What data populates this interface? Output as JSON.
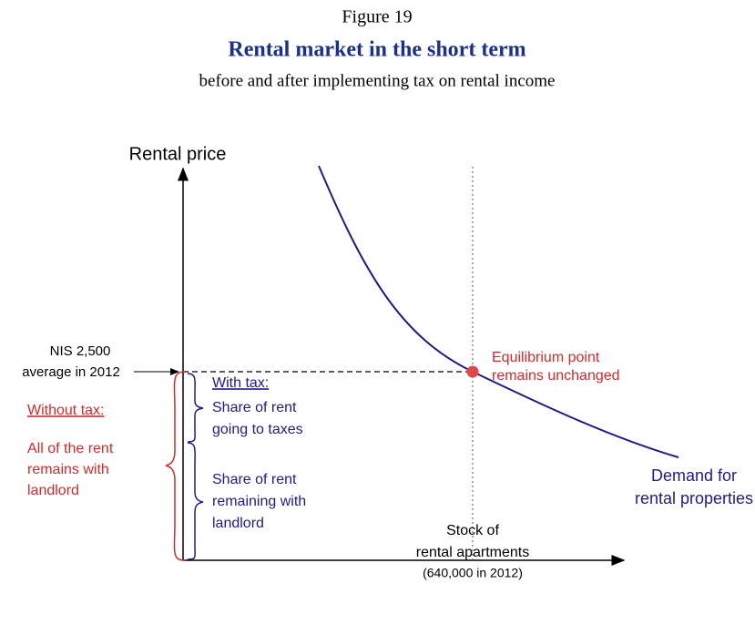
{
  "figure": {
    "label": "Figure 19",
    "title": "Rental market in the short term",
    "subtitle": "before and after implementing tax on rental income"
  },
  "axes": {
    "y_label": "Rental price",
    "x_label": [
      "Stock of",
      "rental apartments",
      "(640,000 in 2012)"
    ]
  },
  "annotations": {
    "price": [
      "NIS 2,500",
      "average in 2012"
    ],
    "equilibrium": [
      "Equilibrium point",
      "remains unchanged"
    ],
    "demand": [
      "Demand for",
      "rental properties"
    ],
    "without_tax": {
      "heading": "Without tax:",
      "lines": [
        "All of the rent",
        "remains with",
        "landlord"
      ]
    },
    "with_tax": {
      "heading": "With tax:",
      "taxes": [
        "Share of rent",
        "going to taxes"
      ],
      "landlord": [
        "Share of rent",
        "remaining with",
        "landlord"
      ]
    }
  }
}
